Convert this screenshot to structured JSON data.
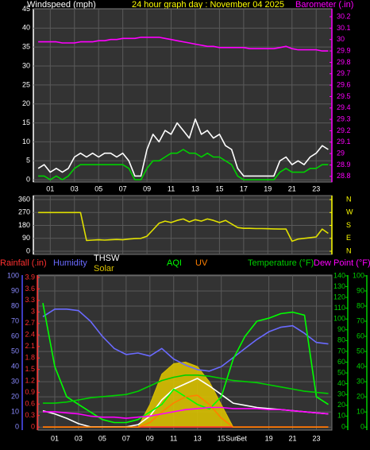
{
  "chart_data": [
    {
      "type": "line",
      "title": "24 hour graph day : November 04 2025",
      "ylabel": "Windspeed (mph)",
      "x": [
        0,
        0.5,
        1,
        1.5,
        2,
        2.5,
        3,
        3.5,
        4,
        4.5,
        5,
        5.5,
        6,
        6.5,
        7,
        7.5,
        8,
        8.5,
        9,
        9.5,
        10,
        10.5,
        11,
        11.5,
        12,
        12.5,
        13,
        13.5,
        14,
        14.5,
        15,
        15.5,
        16,
        16.5,
        17,
        17.5,
        18,
        18.5,
        19,
        19.5,
        20,
        20.5,
        21,
        21.5,
        22,
        22.5,
        23,
        23.5,
        24
      ],
      "xlim": [
        -0.4,
        24.3
      ],
      "xticks": [
        {
          "value": 1,
          "label": "01"
        },
        {
          "value": 3,
          "label": "03"
        },
        {
          "value": 5,
          "label": "05"
        },
        {
          "value": 7,
          "label": "07"
        },
        {
          "value": 9,
          "label": "09"
        },
        {
          "value": 11,
          "label": "11"
        },
        {
          "value": 13,
          "label": "13"
        },
        {
          "value": 15,
          "label": "15"
        },
        {
          "value": 17,
          "label": "17"
        },
        {
          "value": 19,
          "label": "19"
        },
        {
          "value": 21,
          "label": "21"
        },
        {
          "value": 23,
          "label": "23"
        }
      ],
      "ylim": [
        -0.6,
        45.1
      ],
      "yticks": [
        0,
        5,
        10,
        15,
        20,
        25,
        30,
        35,
        40,
        45
      ],
      "y2lim": [
        28.75,
        30.27
      ],
      "y2ticks": [
        28.8,
        28.9,
        29,
        29.1,
        29.2,
        29.3,
        29.4,
        29.5,
        29.6,
        29.7,
        29.8,
        29.9,
        30,
        30.1,
        30.2
      ],
      "grid": true,
      "series": [
        {
          "color": "#ffffff",
          "values": [
            3,
            4,
            2,
            3,
            2,
            3,
            6,
            7,
            6,
            7,
            6,
            7,
            7,
            6,
            7,
            5,
            1,
            1,
            8,
            12,
            10,
            13,
            12,
            15,
            13,
            11,
            16,
            12,
            13,
            11,
            12,
            9,
            8,
            3,
            1,
            1,
            1,
            1,
            1,
            1,
            5,
            6,
            4,
            5,
            4,
            6,
            7,
            9,
            8
          ]
        },
        {
          "color": "#00d000",
          "values": [
            1,
            1,
            0,
            1,
            0,
            1,
            3,
            4,
            4,
            4,
            4,
            4,
            4,
            4,
            4,
            3,
            0,
            0,
            3,
            5,
            5,
            6,
            7,
            7,
            8,
            7,
            7,
            6,
            7,
            6,
            6,
            5,
            4,
            1,
            0,
            0,
            0,
            0,
            0,
            0,
            2,
            3,
            2,
            2,
            2,
            3,
            3,
            4,
            4
          ]
        },
        {
          "name": "Barometer (.in)",
          "color": "#ff00ff",
          "axis": "y2",
          "values": [
            29.98,
            29.98,
            29.98,
            29.98,
            29.97,
            29.97,
            29.97,
            29.98,
            29.98,
            29.98,
            29.99,
            29.99,
            30.0,
            30.0,
            30.01,
            30.01,
            30.01,
            30.02,
            30.02,
            30.02,
            30.02,
            30.01,
            30.0,
            29.99,
            29.98,
            29.97,
            29.96,
            29.95,
            29.94,
            29.94,
            29.93,
            29.93,
            29.93,
            29.93,
            29.93,
            29.92,
            29.92,
            29.92,
            29.92,
            29.92,
            29.93,
            29.94,
            29.92,
            29.91,
            29.91,
            29.91,
            29.91,
            29.9,
            29.9
          ]
        }
      ]
    },
    {
      "type": "line",
      "x": [
        0,
        0.5,
        1,
        1.5,
        2,
        2.5,
        3,
        3.5,
        4,
        4.5,
        5,
        5.5,
        6,
        6.5,
        7,
        7.5,
        8,
        8.5,
        9,
        9.5,
        10,
        10.5,
        11,
        11.5,
        12,
        12.5,
        13,
        13.5,
        14,
        14.5,
        15,
        15.5,
        16,
        16.5,
        17,
        17.5,
        18,
        18.5,
        19,
        19.5,
        20,
        20.5,
        21,
        21.5,
        22,
        22.5,
        23,
        23.5,
        24
      ],
      "xlim": [
        -0.4,
        24.3
      ],
      "xticks": [
        1,
        3,
        5,
        7,
        9,
        11,
        13,
        15,
        17,
        19,
        21,
        23
      ],
      "ylim": [
        -22,
        388
      ],
      "yticks": [
        0,
        90,
        180,
        270,
        360
      ],
      "y2lim": [
        -22,
        388
      ],
      "y2ticks": [
        {
          "value": 360,
          "label": "N"
        },
        {
          "value": 270,
          "label": "W"
        },
        {
          "value": 180,
          "label": "S"
        },
        {
          "value": 90,
          "label": "E"
        },
        {
          "value": 0,
          "label": "N"
        }
      ],
      "grid": true,
      "series": [
        {
          "color": "#e0e000",
          "values": [
            270,
            270,
            270,
            270,
            270,
            270,
            270,
            270,
            75,
            78,
            80,
            78,
            80,
            82,
            80,
            85,
            88,
            90,
            105,
            150,
            195,
            210,
            200,
            215,
            225,
            205,
            220,
            210,
            225,
            215,
            200,
            215,
            190,
            165,
            160,
            160,
            158,
            158,
            157,
            156,
            155,
            155,
            70,
            85,
            90,
            95,
            100,
            155,
            125
          ]
        }
      ]
    },
    {
      "type": "line",
      "x": [
        0,
        1,
        2,
        3,
        4,
        5,
        6,
        7,
        8,
        9,
        10,
        11,
        12,
        13,
        14,
        15,
        16,
        17,
        18,
        19,
        20,
        21,
        22,
        23,
        24
      ],
      "xlim": [
        -0.4,
        24.3
      ],
      "xticks": [
        {
          "value": 1,
          "label": "01"
        },
        {
          "value": 3,
          "label": "03"
        },
        {
          "value": 5,
          "label": "05"
        },
        {
          "value": 7,
          "label": "07"
        },
        {
          "value": 9,
          "label": "09"
        },
        {
          "value": 11,
          "label": "11"
        },
        {
          "value": 13,
          "label": "13"
        },
        {
          "value": 15,
          "label": "15"
        },
        {
          "value": 19,
          "label": "19"
        },
        {
          "value": 21,
          "label": "21"
        },
        {
          "value": 23,
          "label": "23"
        }
      ],
      "annotations": [
        {
          "text": "Sun",
          "x": 15.9
        },
        {
          "text": "Set",
          "x": 16.7
        }
      ],
      "ylim": [
        -2,
        100.5
      ],
      "yticks": [
        0,
        10,
        20,
        30,
        40,
        50,
        60,
        70,
        80,
        90,
        100
      ],
      "y2lim": [
        -0.08,
        3.96
      ],
      "y2ticks": [
        0,
        0.3,
        0.6,
        0.9,
        1.2,
        1.5,
        1.8,
        2.1,
        2.4,
        2.7,
        3,
        3.3,
        3.6,
        3.9
      ],
      "y3lim": [
        -3,
        140.7
      ],
      "y3ticks": [
        0,
        10,
        20,
        30,
        40,
        50,
        60,
        70,
        80,
        90,
        100,
        110,
        120,
        130,
        140
      ],
      "y4lim": [
        -2,
        100.5
      ],
      "y4ticks": [
        0,
        10,
        20,
        30,
        40,
        50,
        60,
        70,
        80,
        90,
        100
      ],
      "grid": true,
      "series": [
        {
          "name": "Rainfall (.in)",
          "color": "#ff3030",
          "axis": "y2",
          "values": [
            0,
            0,
            0,
            0,
            0,
            0,
            0,
            0,
            0,
            0,
            0,
            0,
            0,
            0,
            0,
            0,
            0,
            0,
            0,
            0,
            0,
            0,
            0,
            0,
            0
          ]
        },
        {
          "name": "Humidity",
          "color": "#6a6aff",
          "axis": "y",
          "values": [
            73,
            78,
            78,
            77,
            70,
            60,
            52,
            48,
            49,
            47,
            52,
            45,
            41,
            38,
            37,
            40,
            46,
            52,
            58,
            63,
            66,
            67,
            62,
            56,
            55
          ]
        },
        {
          "name": "THSW",
          "color": "#ffffff",
          "axis": "y3",
          "values": [
            15,
            12,
            8,
            3,
            0,
            0,
            0,
            0,
            2,
            10,
            25,
            35,
            40,
            45,
            38,
            30,
            22,
            20,
            18,
            17,
            16,
            15,
            14,
            13,
            12
          ]
        },
        {
          "name": "Solar",
          "color": "#d8c000",
          "axis": "y4",
          "fill": true,
          "values": [
            0,
            0,
            0,
            0,
            0,
            0,
            0,
            0,
            0,
            15,
            35,
            42,
            43,
            40,
            30,
            15,
            0,
            0,
            0,
            0,
            0,
            0,
            0,
            0,
            0
          ]
        },
        {
          "name": "AQI",
          "color": "#00ff00",
          "axis": "y4",
          "values": [
            82,
            40,
            20,
            15,
            10,
            5,
            3,
            3,
            5,
            10,
            15,
            25,
            20,
            15,
            12,
            20,
            45,
            60,
            70,
            72,
            75,
            76,
            74,
            20,
            15
          ]
        },
        {
          "name": "UV",
          "color": "#ff8000",
          "axis": "y4",
          "values": [
            0,
            0,
            0,
            0,
            0,
            0,
            0,
            0,
            0,
            3,
            10,
            16,
            20,
            21,
            15,
            6,
            0,
            0,
            0,
            0,
            0,
            0,
            0,
            0,
            0
          ]
        },
        {
          "name": "Temperature (°F)",
          "color": "#00d000",
          "axis": "y3",
          "values": [
            22,
            22,
            23,
            25,
            27,
            28,
            29,
            30,
            33,
            38,
            43,
            46,
            48,
            48,
            47,
            45,
            43,
            42,
            41,
            39,
            37,
            35,
            33,
            32,
            31
          ]
        },
        {
          "name": "Dew Point (°F)",
          "color": "#ff00ff",
          "axis": "y3",
          "values": [
            14,
            14,
            13,
            12,
            10,
            9,
            9,
            8,
            9,
            10,
            12,
            14,
            16,
            17,
            18,
            18,
            17,
            17,
            17,
            16,
            16,
            15,
            14,
            13,
            12
          ]
        }
      ]
    }
  ]
}
